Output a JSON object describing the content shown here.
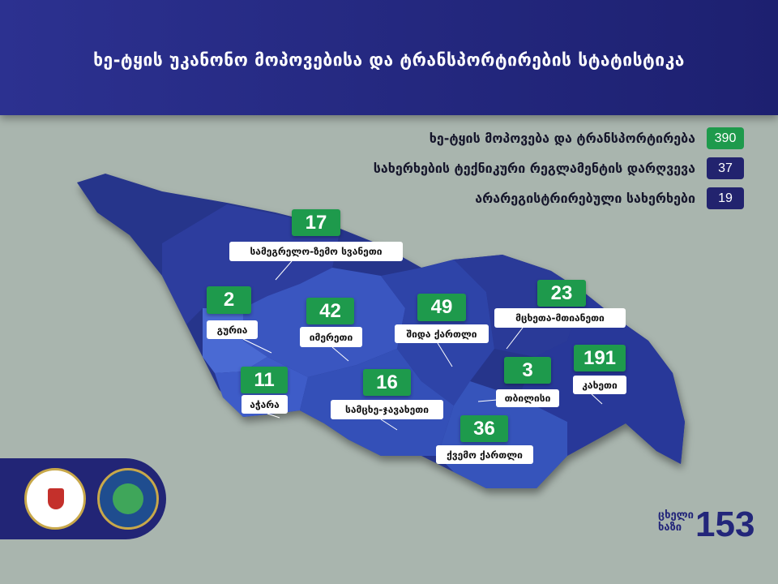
{
  "header": {
    "title": "ხე-ტყის უკანონო მოპოვებისა და ტრანსპორტირების სტატისტიკა"
  },
  "legend": [
    {
      "label": "ხე-ტყის მოპოვება და ტრანსპორტირება",
      "value": "390",
      "color": "#1e9a4c"
    },
    {
      "label": "სახერხების ტექნიკური რეგლამენტის დარღვევა",
      "value": "37",
      "color": "#22236e"
    },
    {
      "label": "არარეგისტრირებული სახერხები",
      "value": "19",
      "color": "#22236e"
    }
  ],
  "regions": [
    {
      "name": "სამეგრელო-ზემო სვანეთი",
      "value": "17"
    },
    {
      "name": "გურია",
      "value": "2"
    },
    {
      "name": "იმერეთი",
      "value": "42"
    },
    {
      "name": "შიდა ქართლი",
      "value": "49"
    },
    {
      "name": "მცხეთა-მთიანეთი",
      "value": "23"
    },
    {
      "name": "კახეთი",
      "value": "191"
    },
    {
      "name": "თბილისი",
      "value": "3"
    },
    {
      "name": "აჭარა",
      "value": "11"
    },
    {
      "name": "სამცხე-ჯავახეთი",
      "value": "16"
    },
    {
      "name": "ქვემო ქართლი",
      "value": "36"
    }
  ],
  "hotline": {
    "line1": "ცხელი",
    "line2": "ხაზი",
    "number": "153"
  },
  "colors": {
    "header": "#2c3190",
    "background": "#a9b5ae",
    "badge_green": "#1e9a4c",
    "badge_navy": "#22236e"
  }
}
